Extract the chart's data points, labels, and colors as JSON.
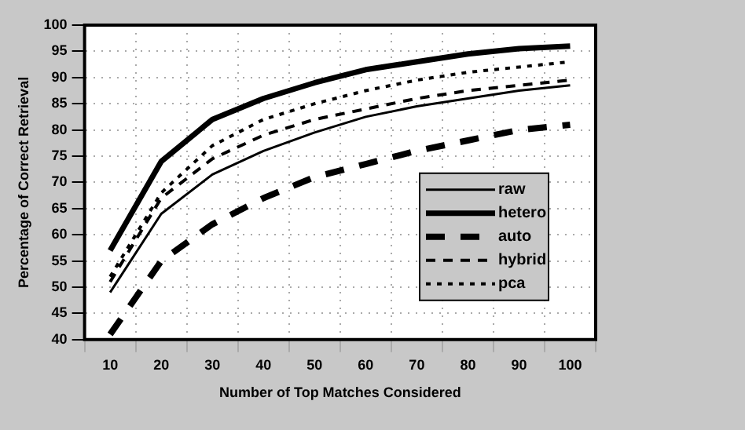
{
  "chart_data": {
    "type": "line",
    "xlabel": "Number of Top Matches Considered",
    "ylabel": "Percentage of Correct Retrieval",
    "categories": [
      "10",
      "20",
      "30",
      "40",
      "50",
      "60",
      "70",
      "80",
      "90",
      "100"
    ],
    "ylim": [
      40,
      100
    ],
    "yticks": [
      40,
      45,
      50,
      55,
      60,
      65,
      70,
      75,
      80,
      85,
      90,
      95,
      100
    ],
    "grid": true,
    "legend": "bottom right",
    "marker": "none",
    "series": [
      {
        "name": "raw",
        "color": "#000000",
        "line_style": "solid",
        "values": [
          49,
          64,
          71.5,
          76,
          79.5,
          82.5,
          84.5,
          86,
          87.5,
          88.5
        ]
      },
      {
        "name": "hetero",
        "color": "#000000",
        "line_style": "solid",
        "values": [
          57,
          74,
          82,
          86,
          89,
          91.5,
          93,
          94.5,
          95.5,
          96
        ]
      },
      {
        "name": "auto",
        "color": "#000000",
        "line_style": "dashed",
        "values": [
          41,
          55,
          62,
          67,
          71,
          73.5,
          76,
          78,
          80,
          81
        ]
      },
      {
        "name": "hybrid",
        "color": "#000000",
        "line_style": "dashed",
        "values": [
          51,
          67,
          74.5,
          79,
          82,
          84,
          86,
          87.5,
          88.5,
          89.5
        ]
      },
      {
        "name": "pca",
        "color": "#000000",
        "line_style": "dotted",
        "values": [
          52,
          68,
          77,
          82,
          85,
          87.5,
          89.5,
          91,
          92,
          93
        ]
      }
    ]
  }
}
